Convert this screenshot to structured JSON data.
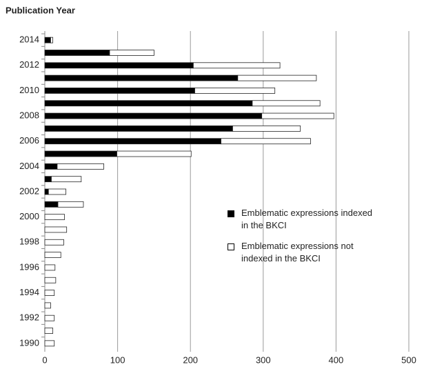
{
  "chart_data": {
    "type": "stacked-barh",
    "y_label": "Publication Year",
    "categories": [
      "2014",
      null,
      "2012",
      null,
      "2010",
      null,
      "2008",
      null,
      "2006",
      null,
      "2004",
      null,
      "2002",
      null,
      "2000",
      null,
      "1998",
      null,
      "1996",
      null,
      "1994",
      null,
      "1992",
      null,
      "1990"
    ],
    "series": [
      {
        "name": "Emblematic expressions indexed in the BKCI",
        "color": "#000000",
        "values": [
          8,
          89,
          204,
          265,
          206,
          285,
          298,
          258,
          242,
          99,
          17,
          9,
          5,
          18,
          0,
          0,
          0,
          0,
          0,
          0,
          0,
          0,
          0,
          0,
          0
        ]
      },
      {
        "name": "Emblematic expressions not indexed in the BKCI",
        "color": "#ffffff",
        "values": [
          3,
          61,
          119,
          108,
          110,
          93,
          99,
          93,
          123,
          102,
          64,
          41,
          24,
          35,
          27,
          30,
          26,
          22,
          14,
          15,
          13,
          8,
          13,
          11,
          13
        ]
      }
    ],
    "xlim": [
      0,
      500
    ],
    "xticks": [
      0,
      100,
      200,
      300,
      400,
      500
    ],
    "grid": true
  }
}
